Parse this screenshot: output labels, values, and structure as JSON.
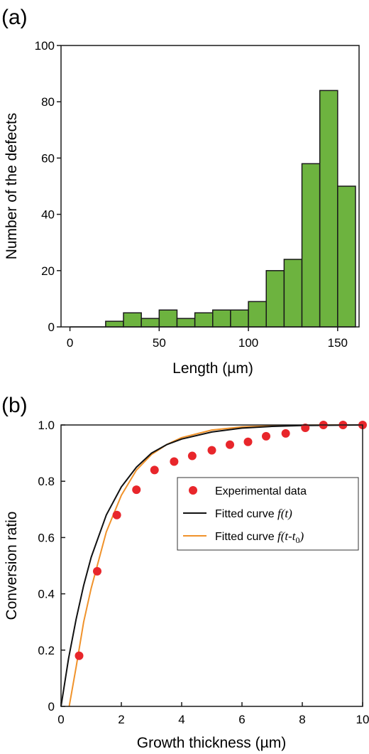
{
  "chart_data": [
    {
      "panel_label": "(a)",
      "type": "bar",
      "xlabel": "Length (µm)",
      "ylabel": "Number of the defects",
      "xlim": [
        -5,
        162
      ],
      "ylim": [
        0,
        100
      ],
      "xticks": [
        0,
        50,
        100,
        150
      ],
      "yticks": [
        0,
        20,
        40,
        60,
        80,
        100
      ],
      "bin_width": 10,
      "bars": [
        {
          "x_start": 20,
          "value": 2
        },
        {
          "x_start": 30,
          "value": 5
        },
        {
          "x_start": 40,
          "value": 3
        },
        {
          "x_start": 50,
          "value": 6
        },
        {
          "x_start": 60,
          "value": 3
        },
        {
          "x_start": 70,
          "value": 5
        },
        {
          "x_start": 80,
          "value": 6
        },
        {
          "x_start": 90,
          "value": 6
        },
        {
          "x_start": 100,
          "value": 9
        },
        {
          "x_start": 110,
          "value": 20
        },
        {
          "x_start": 120,
          "value": 24
        },
        {
          "x_start": 130,
          "value": 58
        },
        {
          "x_start": 140,
          "value": 84
        },
        {
          "x_start": 150,
          "value": 50
        }
      ],
      "bar_color": "#6db33f",
      "bar_edge": "#1a1a1a"
    },
    {
      "panel_label": "(b)",
      "type": "scatter",
      "xlabel": "Growth thickness (µm)",
      "ylabel": "Conversion ratio",
      "xlim": [
        0,
        10
      ],
      "ylim": [
        0,
        1.0
      ],
      "xticks": [
        0,
        2,
        4,
        6,
        8,
        10
      ],
      "yticks": [
        0,
        0.2,
        0.4,
        0.6,
        0.8,
        1.0
      ],
      "ytick_labels": [
        "0",
        "0.2",
        "0.4",
        "0.6",
        "0.8",
        "1.0"
      ],
      "legend_position": "center-right",
      "series": [
        {
          "name": "Experimental data",
          "kind": "points",
          "color": "#e8262b",
          "x": [
            0.6,
            1.2,
            1.85,
            2.5,
            3.1,
            3.75,
            4.35,
            5.0,
            5.6,
            6.2,
            6.8,
            7.45,
            8.1,
            8.7,
            9.35,
            10.0
          ],
          "y": [
            0.18,
            0.48,
            0.68,
            0.77,
            0.84,
            0.87,
            0.89,
            0.91,
            0.93,
            0.94,
            0.96,
            0.97,
            0.99,
            1.0,
            1.0,
            1.0
          ]
        },
        {
          "name_prefix": "Fitted curve ",
          "name_math": "f(t)",
          "kind": "line",
          "color": "#111111",
          "x": [
            0,
            0.25,
            0.5,
            0.75,
            1.0,
            1.5,
            2.0,
            2.5,
            3.0,
            3.5,
            4.0,
            5.0,
            6.0,
            7.0,
            8.0,
            9.0,
            10.0
          ],
          "y": [
            0.0,
            0.17,
            0.31,
            0.43,
            0.53,
            0.68,
            0.78,
            0.85,
            0.9,
            0.93,
            0.95,
            0.975,
            0.989,
            0.995,
            0.998,
            0.999,
            1.0
          ]
        },
        {
          "name_prefix": "Fitted curve ",
          "name_math_parts": [
            "f(t-t",
            "0",
            ")"
          ],
          "kind": "line",
          "color": "#f0922a",
          "x": [
            0.27,
            0.5,
            0.75,
            1.0,
            1.5,
            2.0,
            2.5,
            3.0,
            3.5,
            4.0,
            5.0,
            6.0,
            7.0,
            8.0,
            9.0,
            10.0
          ],
          "y": [
            0.0,
            0.14,
            0.3,
            0.42,
            0.62,
            0.75,
            0.84,
            0.895,
            0.93,
            0.955,
            0.982,
            0.993,
            0.997,
            0.999,
            1.0,
            1.0
          ]
        }
      ]
    }
  ]
}
